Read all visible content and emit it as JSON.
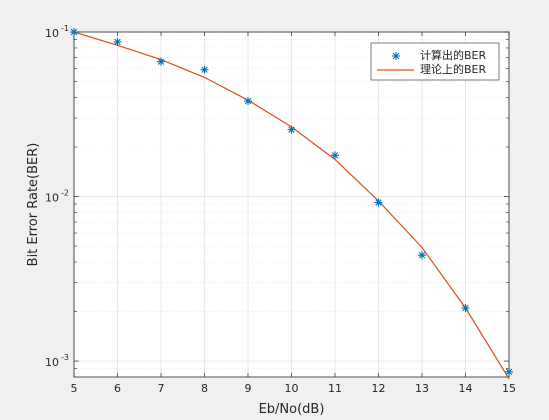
{
  "chart_data": {
    "type": "scatter",
    "xlabel": "Eb/No(dB)",
    "ylabel": "Bit Error Rate(BER)",
    "xlim": [
      5,
      15
    ],
    "ylim": [
      0.0008,
      0.1
    ],
    "yscale": "log",
    "x_ticks": [
      "5",
      "6",
      "7",
      "8",
      "9",
      "10",
      "11",
      "12",
      "13",
      "14",
      "15"
    ],
    "y_ticks": [
      {
        "value": 0.1,
        "base": "10",
        "exp": "-1"
      },
      {
        "value": 0.01,
        "base": "10",
        "exp": "-2"
      },
      {
        "value": 0.001,
        "base": "10",
        "exp": "-3"
      }
    ],
    "grid": true,
    "legend_position": "top-right",
    "series": [
      {
        "name": "计算出的BER",
        "kind": "markers",
        "marker": "asterisk",
        "color": "#0072bd",
        "x": [
          5,
          6,
          7,
          8,
          9,
          10,
          11,
          12,
          13,
          14,
          15
        ],
        "y": [
          0.1,
          0.087,
          0.066,
          0.059,
          0.038,
          0.0255,
          0.0178,
          0.0092,
          0.0044,
          0.0021,
          0.00086
        ]
      },
      {
        "name": "理论上的BER",
        "kind": "line",
        "color": "#d95319",
        "x": [
          5,
          6,
          7,
          8,
          9,
          10,
          11,
          12,
          13,
          14,
          15
        ],
        "y": [
          0.1,
          0.083,
          0.068,
          0.053,
          0.0385,
          0.0265,
          0.0168,
          0.0094,
          0.0049,
          0.0021,
          0.00078
        ]
      }
    ]
  }
}
